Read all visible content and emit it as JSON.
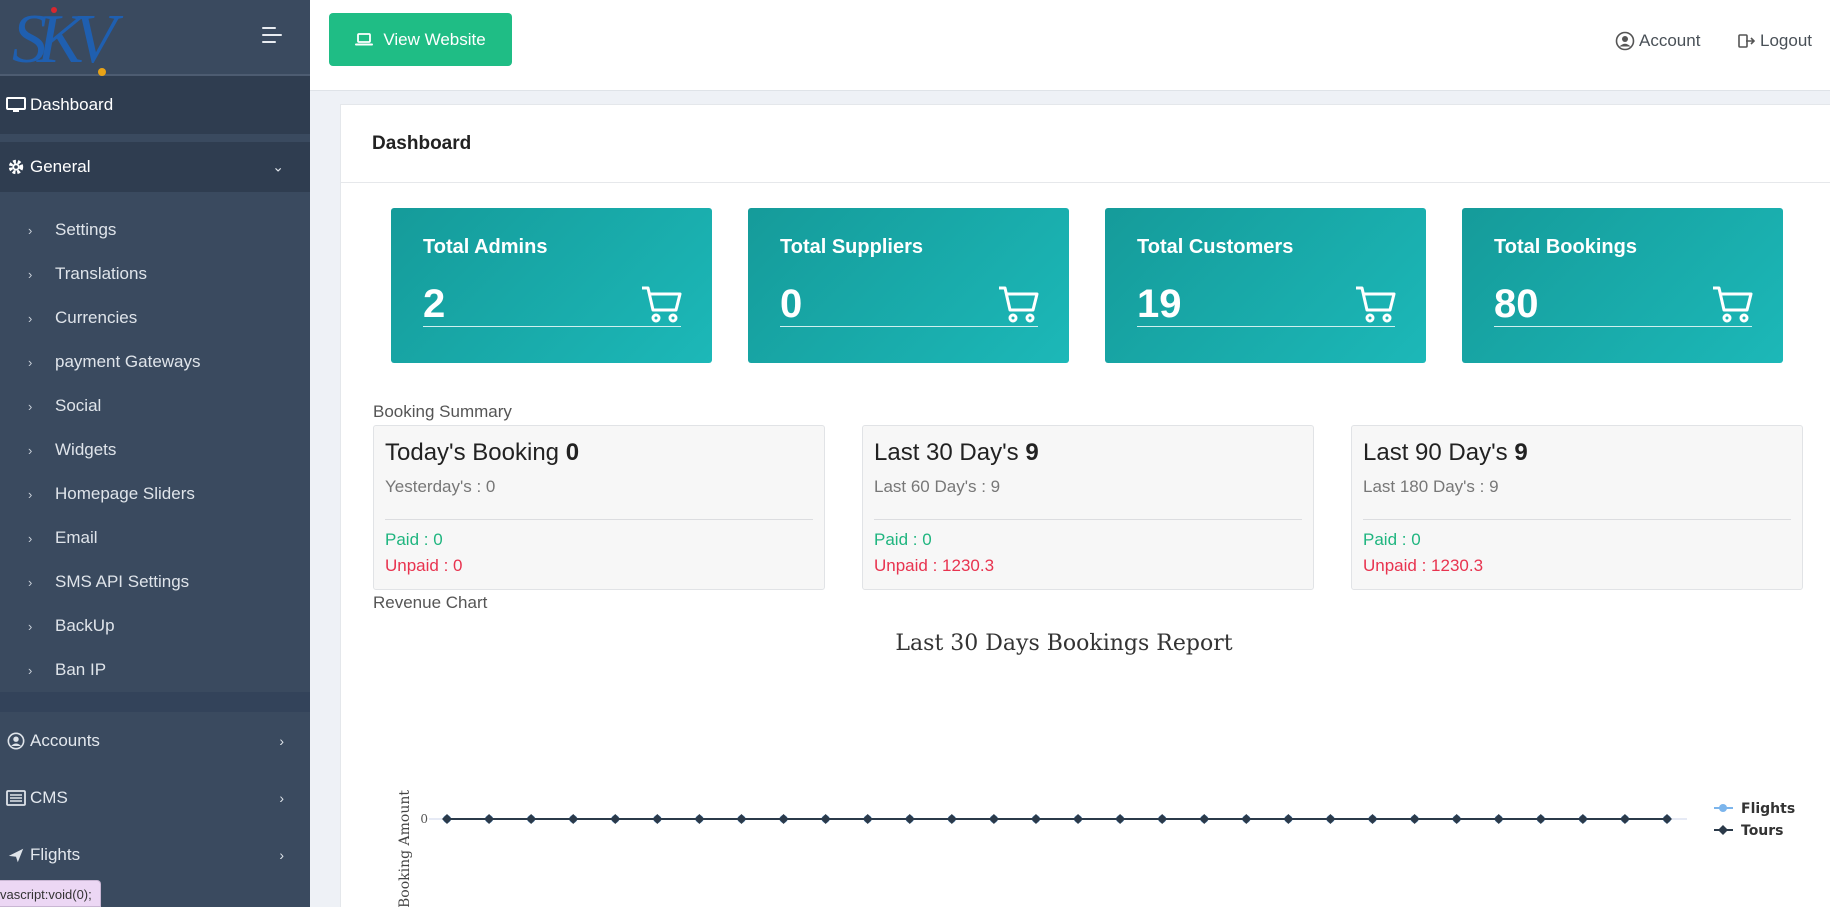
{
  "sidebar": {
    "logo_text": "SKV",
    "dashboard_label": "Dashboard",
    "general_label": "General",
    "general_items": [
      {
        "label": "Settings"
      },
      {
        "label": "Translations"
      },
      {
        "label": "Currencies"
      },
      {
        "label": "payment Gateways"
      },
      {
        "label": "Social"
      },
      {
        "label": "Widgets"
      },
      {
        "label": "Homepage Sliders"
      },
      {
        "label": "Email"
      },
      {
        "label": "SMS API Settings"
      },
      {
        "label": "BackUp"
      },
      {
        "label": "Ban IP"
      }
    ],
    "sections": [
      {
        "label": "Accounts",
        "icon": "user-circle-icon"
      },
      {
        "label": "CMS",
        "icon": "list-icon"
      },
      {
        "label": "Flights",
        "icon": "plane-icon"
      }
    ],
    "status_tip": "vascript:void(0);"
  },
  "topbar": {
    "view_website_label": "View Website",
    "account_label": "Account",
    "logout_label": "Logout"
  },
  "main": {
    "title": "Dashboard",
    "stats": [
      {
        "label": "Total Admins",
        "value": "2"
      },
      {
        "label": "Total Suppliers",
        "value": "0"
      },
      {
        "label": "Total Customers",
        "value": "19"
      },
      {
        "label": "Total Bookings",
        "value": "80"
      }
    ],
    "booking_summary_label": "Booking Summary",
    "summary": [
      {
        "title": "Today's Booking",
        "count": "0",
        "sub": "Yesterday's : 0",
        "paid": "Paid : 0",
        "unpaid": "Unpaid : 0"
      },
      {
        "title": "Last 30 Day's",
        "count": "9",
        "sub": "Last 60 Day's : 9",
        "paid": "Paid : 0",
        "unpaid": "Unpaid : 1230.3"
      },
      {
        "title": "Last 90 Day's",
        "count": "9",
        "sub": "Last 180 Day's : 9",
        "paid": "Paid : 0",
        "unpaid": "Unpaid : 1230.3"
      }
    ],
    "revenue_chart_label": "Revenue Chart"
  },
  "colors": {
    "sidebar_bg": "#3a4a5f",
    "accent_green": "#1fbd85",
    "stat_teal": "#17a9a8",
    "paid_green": "#1fb57f",
    "unpaid_red": "#e8334f",
    "flights_series": "#7cb5ec",
    "tours_series": "#2b3a4a"
  },
  "chart_data": {
    "type": "line",
    "title": "Last 30 Days Bookings Report",
    "ylabel": "Booking Amount",
    "xlabel": "",
    "y_ticks": [
      "0"
    ],
    "point_count": 30,
    "series": [
      {
        "name": "Flights",
        "values": [
          0,
          0,
          0,
          0,
          0,
          0,
          0,
          0,
          0,
          0,
          0,
          0,
          0,
          0,
          0,
          0,
          0,
          0,
          0,
          0,
          0,
          0,
          0,
          0,
          0,
          0,
          0,
          0,
          0,
          0
        ]
      },
      {
        "name": "Tours",
        "values": [
          0,
          0,
          0,
          0,
          0,
          0,
          0,
          0,
          0,
          0,
          0,
          0,
          0,
          0,
          0,
          0,
          0,
          0,
          0,
          0,
          0,
          0,
          0,
          0,
          0,
          0,
          0,
          0,
          0,
          0
        ]
      }
    ],
    "legend_position": "right"
  }
}
